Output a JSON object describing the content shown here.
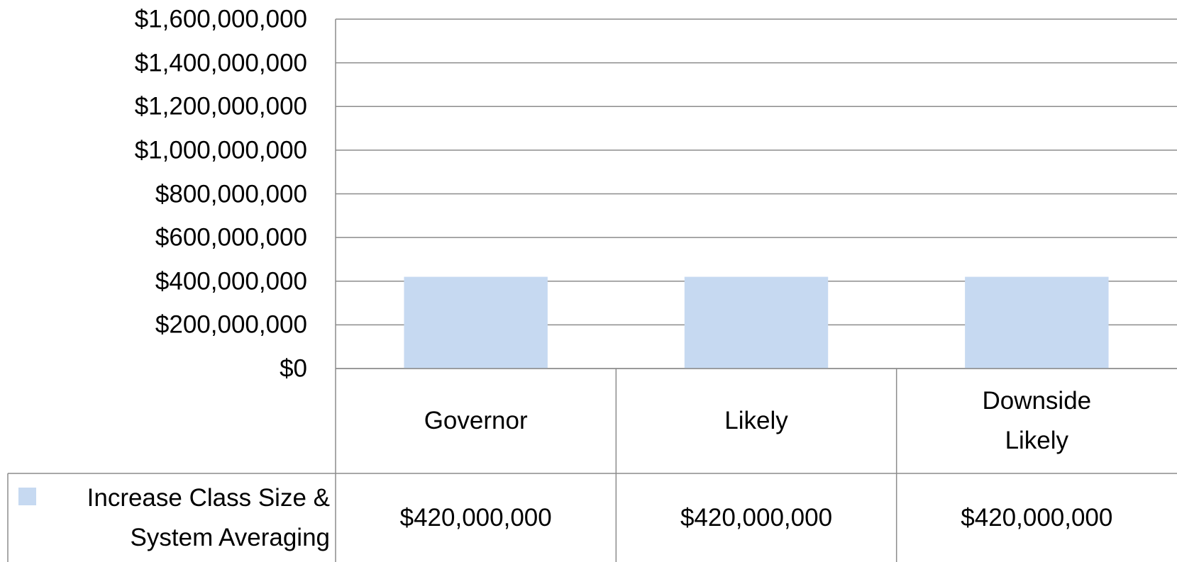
{
  "chart_data": {
    "type": "bar",
    "categories": [
      "Governor",
      "Likely",
      "Downside Likely"
    ],
    "series": [
      {
        "name": "Increase Class Size & System Averaging",
        "color": "#c6d9f1",
        "values": [
          420000000,
          420000000,
          420000000
        ],
        "value_labels": [
          "$420,000,000",
          "$420,000,000",
          "$420,000,000"
        ]
      }
    ],
    "ylim": [
      0,
      1600000000
    ],
    "yticks": [
      {
        "value": 0,
        "label": "$0"
      },
      {
        "value": 200000000,
        "label": "$200,000,000"
      },
      {
        "value": 400000000,
        "label": "$400,000,000"
      },
      {
        "value": 600000000,
        "label": "$600,000,000"
      },
      {
        "value": 800000000,
        "label": "$800,000,000"
      },
      {
        "value": 1000000000,
        "label": "$1,000,000,000"
      },
      {
        "value": 1200000000,
        "label": "$1,200,000,000"
      },
      {
        "value": 1400000000,
        "label": "$1,400,000,000"
      },
      {
        "value": 1600000000,
        "label": "$1,600,000,000"
      }
    ],
    "grid": true,
    "data_table": true
  }
}
